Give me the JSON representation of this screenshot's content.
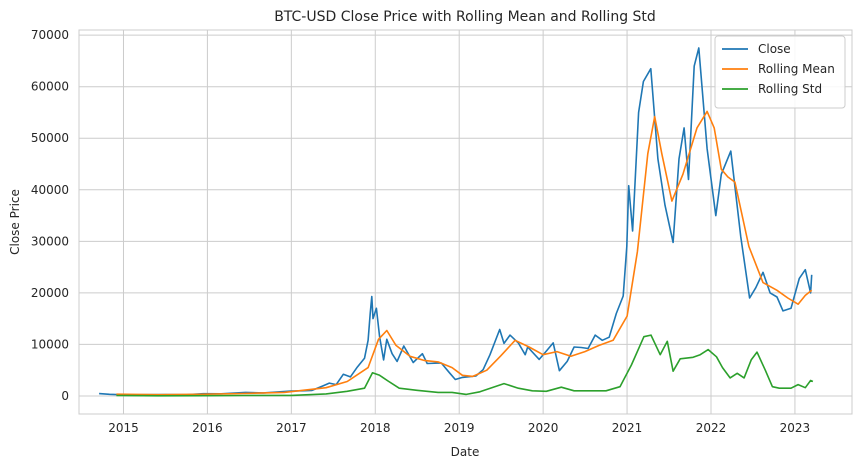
{
  "chart_data": {
    "type": "line",
    "title": "BTC-USD Close Price with Rolling Mean and Rolling Std",
    "xlabel": "Date",
    "ylabel": "Close Price",
    "x_range": [
      "2014-06-20",
      "2023-09-08"
    ],
    "xlim": [
      2014.47,
      2023.68
    ],
    "ylim": [
      -3500,
      71000
    ],
    "x_ticks": [
      "2015",
      "2016",
      "2017",
      "2018",
      "2019",
      "2020",
      "2021",
      "2022",
      "2023"
    ],
    "y_ticks": [
      0,
      10000,
      20000,
      30000,
      40000,
      50000,
      60000,
      70000
    ],
    "grid": true,
    "legend_position": "upper right",
    "series": [
      {
        "name": "Close",
        "color": "#1f77b4",
        "points": [
          [
            "2014-09-17",
            460
          ],
          [
            "2014-11-01",
            330
          ],
          [
            "2015-01-15",
            210
          ],
          [
            "2015-04-01",
            245
          ],
          [
            "2015-07-01",
            260
          ],
          [
            "2015-10-01",
            240
          ],
          [
            "2015-12-15",
            440
          ],
          [
            "2016-03-01",
            420
          ],
          [
            "2016-06-15",
            700
          ],
          [
            "2016-09-01",
            600
          ],
          [
            "2016-12-31",
            960
          ],
          [
            "2017-02-15",
            1000
          ],
          [
            "2017-04-01",
            1080
          ],
          [
            "2017-05-20",
            2000
          ],
          [
            "2017-06-15",
            2500
          ],
          [
            "2017-07-15",
            2200
          ],
          [
            "2017-08-15",
            4200
          ],
          [
            "2017-09-15",
            3700
          ],
          [
            "2017-10-15",
            5600
          ],
          [
            "2017-11-15",
            7300
          ],
          [
            "2017-12-01",
            10800
          ],
          [
            "2017-12-10",
            16000
          ],
          [
            "2017-12-17",
            19300
          ],
          [
            "2017-12-22",
            15000
          ],
          [
            "2018-01-06",
            17000
          ],
          [
            "2018-01-20",
            11500
          ],
          [
            "2018-02-06",
            7000
          ],
          [
            "2018-02-20",
            11000
          ],
          [
            "2018-03-15",
            8200
          ],
          [
            "2018-04-06",
            6700
          ],
          [
            "2018-05-05",
            9700
          ],
          [
            "2018-06-15",
            6500
          ],
          [
            "2018-07-25",
            8200
          ],
          [
            "2018-08-15",
            6300
          ],
          [
            "2018-10-15",
            6400
          ],
          [
            "2018-11-20",
            4500
          ],
          [
            "2018-12-15",
            3200
          ],
          [
            "2019-01-15",
            3600
          ],
          [
            "2019-03-15",
            3900
          ],
          [
            "2019-04-15",
            5100
          ],
          [
            "2019-05-15",
            8000
          ],
          [
            "2019-06-26",
            12900
          ],
          [
            "2019-07-15",
            10200
          ],
          [
            "2019-08-10",
            11800
          ],
          [
            "2019-09-15",
            10300
          ],
          [
            "2019-10-15",
            8000
          ],
          [
            "2019-10-26",
            9500
          ],
          [
            "2019-12-15",
            7100
          ],
          [
            "2020-01-15",
            8700
          ],
          [
            "2020-02-14",
            10300
          ],
          [
            "2020-03-12",
            4900
          ],
          [
            "2020-04-15",
            6700
          ],
          [
            "2020-05-15",
            9500
          ],
          [
            "2020-06-15",
            9400
          ],
          [
            "2020-07-15",
            9200
          ],
          [
            "2020-08-15",
            11800
          ],
          [
            "2020-09-15",
            10800
          ],
          [
            "2020-10-15",
            11400
          ],
          [
            "2020-11-15",
            16000
          ],
          [
            "2020-12-15",
            19400
          ],
          [
            "2020-12-31",
            29000
          ],
          [
            "2021-01-08",
            40800
          ],
          [
            "2021-01-25",
            32000
          ],
          [
            "2021-02-20",
            55000
          ],
          [
            "2021-03-13",
            61000
          ],
          [
            "2021-04-14",
            63500
          ],
          [
            "2021-05-15",
            46000
          ],
          [
            "2021-06-15",
            37000
          ],
          [
            "2021-07-20",
            29800
          ],
          [
            "2021-08-15",
            46000
          ],
          [
            "2021-09-06",
            52000
          ],
          [
            "2021-09-25",
            42000
          ],
          [
            "2021-10-20",
            64000
          ],
          [
            "2021-11-09",
            67500
          ],
          [
            "2021-12-15",
            48000
          ],
          [
            "2022-01-22",
            35000
          ],
          [
            "2022-02-15",
            43000
          ],
          [
            "2022-03-28",
            47500
          ],
          [
            "2022-05-10",
            31000
          ],
          [
            "2022-06-18",
            19000
          ],
          [
            "2022-07-15",
            21000
          ],
          [
            "2022-08-15",
            24000
          ],
          [
            "2022-09-15",
            20000
          ],
          [
            "2022-10-15",
            19200
          ],
          [
            "2022-11-10",
            16500
          ],
          [
            "2022-12-15",
            17000
          ],
          [
            "2023-01-20",
            22800
          ],
          [
            "2023-02-15",
            24500
          ],
          [
            "2023-03-10",
            20000
          ],
          [
            "2023-03-15",
            23500
          ]
        ]
      },
      {
        "name": "Rolling Mean",
        "color": "#ff7f0e",
        "points": [
          [
            "2014-12-01",
            350
          ],
          [
            "2015-06-01",
            250
          ],
          [
            "2015-12-01",
            320
          ],
          [
            "2016-06-01",
            480
          ],
          [
            "2016-12-01",
            700
          ],
          [
            "2017-06-01",
            1600
          ],
          [
            "2017-09-01",
            2800
          ],
          [
            "2017-12-01",
            5500
          ],
          [
            "2018-01-15",
            11000
          ],
          [
            "2018-02-20",
            12700
          ],
          [
            "2018-04-01",
            9800
          ],
          [
            "2018-06-01",
            7700
          ],
          [
            "2018-08-01",
            6900
          ],
          [
            "2018-10-01",
            6600
          ],
          [
            "2018-12-01",
            5500
          ],
          [
            "2019-01-15",
            4000
          ],
          [
            "2019-03-01",
            3800
          ],
          [
            "2019-05-01",
            5000
          ],
          [
            "2019-07-01",
            7800
          ],
          [
            "2019-09-01",
            10800
          ],
          [
            "2019-11-01",
            9500
          ],
          [
            "2020-01-01",
            8000
          ],
          [
            "2020-03-01",
            8600
          ],
          [
            "2020-05-01",
            7700
          ],
          [
            "2020-07-01",
            8600
          ],
          [
            "2020-09-01",
            9800
          ],
          [
            "2020-11-01",
            10800
          ],
          [
            "2021-01-01",
            15500
          ],
          [
            "2021-02-15",
            28000
          ],
          [
            "2021-04-01",
            47000
          ],
          [
            "2021-05-01",
            54200
          ],
          [
            "2021-06-01",
            47000
          ],
          [
            "2021-07-15",
            37800
          ],
          [
            "2021-09-01",
            43000
          ],
          [
            "2021-11-01",
            52000
          ],
          [
            "2021-12-15",
            55200
          ],
          [
            "2022-01-15",
            52000
          ],
          [
            "2022-02-15",
            44000
          ],
          [
            "2022-03-15",
            42500
          ],
          [
            "2022-04-15",
            41500
          ],
          [
            "2022-06-15",
            29000
          ],
          [
            "2022-08-15",
            22000
          ],
          [
            "2022-10-15",
            20500
          ],
          [
            "2022-12-01",
            19000
          ],
          [
            "2023-01-15",
            17800
          ],
          [
            "2023-02-15",
            19500
          ],
          [
            "2023-03-15",
            20500
          ]
        ]
      },
      {
        "name": "Rolling Std",
        "color": "#2ca02c",
        "points": [
          [
            "2014-12-01",
            80
          ],
          [
            "2015-06-01",
            40
          ],
          [
            "2016-01-01",
            60
          ],
          [
            "2016-06-01",
            90
          ],
          [
            "2017-01-01",
            100
          ],
          [
            "2017-06-01",
            400
          ],
          [
            "2017-09-01",
            900
          ],
          [
            "2017-11-15",
            1500
          ],
          [
            "2017-12-20",
            4500
          ],
          [
            "2018-01-20",
            4000
          ],
          [
            "2018-03-01",
            2800
          ],
          [
            "2018-04-15",
            1500
          ],
          [
            "2018-07-01",
            1100
          ],
          [
            "2018-10-01",
            700
          ],
          [
            "2018-12-01",
            700
          ],
          [
            "2019-02-01",
            300
          ],
          [
            "2019-04-01",
            800
          ],
          [
            "2019-07-15",
            2400
          ],
          [
            "2019-09-15",
            1500
          ],
          [
            "2019-11-15",
            1000
          ],
          [
            "2020-01-15",
            900
          ],
          [
            "2020-03-20",
            1700
          ],
          [
            "2020-05-15",
            1000
          ],
          [
            "2020-08-01",
            1000
          ],
          [
            "2020-10-01",
            1000
          ],
          [
            "2020-12-01",
            1800
          ],
          [
            "2021-01-20",
            6000
          ],
          [
            "2021-03-15",
            11500
          ],
          [
            "2021-04-15",
            11800
          ],
          [
            "2021-05-25",
            8000
          ],
          [
            "2021-06-25",
            10600
          ],
          [
            "2021-07-20",
            4800
          ],
          [
            "2021-08-20",
            7200
          ],
          [
            "2021-10-15",
            7500
          ],
          [
            "2021-11-15",
            8000
          ],
          [
            "2021-12-20",
            9000
          ],
          [
            "2022-01-25",
            7600
          ],
          [
            "2022-02-20",
            5500
          ],
          [
            "2022-03-25",
            3500
          ],
          [
            "2022-04-25",
            4400
          ],
          [
            "2022-05-25",
            3500
          ],
          [
            "2022-06-25",
            7000
          ],
          [
            "2022-07-20",
            8500
          ],
          [
            "2022-08-25",
            5000
          ],
          [
            "2022-09-25",
            1800
          ],
          [
            "2022-10-25",
            1500
          ],
          [
            "2022-12-15",
            1500
          ],
          [
            "2023-01-15",
            2200
          ],
          [
            "2023-02-15",
            1600
          ],
          [
            "2023-03-10",
            3000
          ],
          [
            "2023-03-20",
            2800
          ]
        ]
      }
    ]
  }
}
